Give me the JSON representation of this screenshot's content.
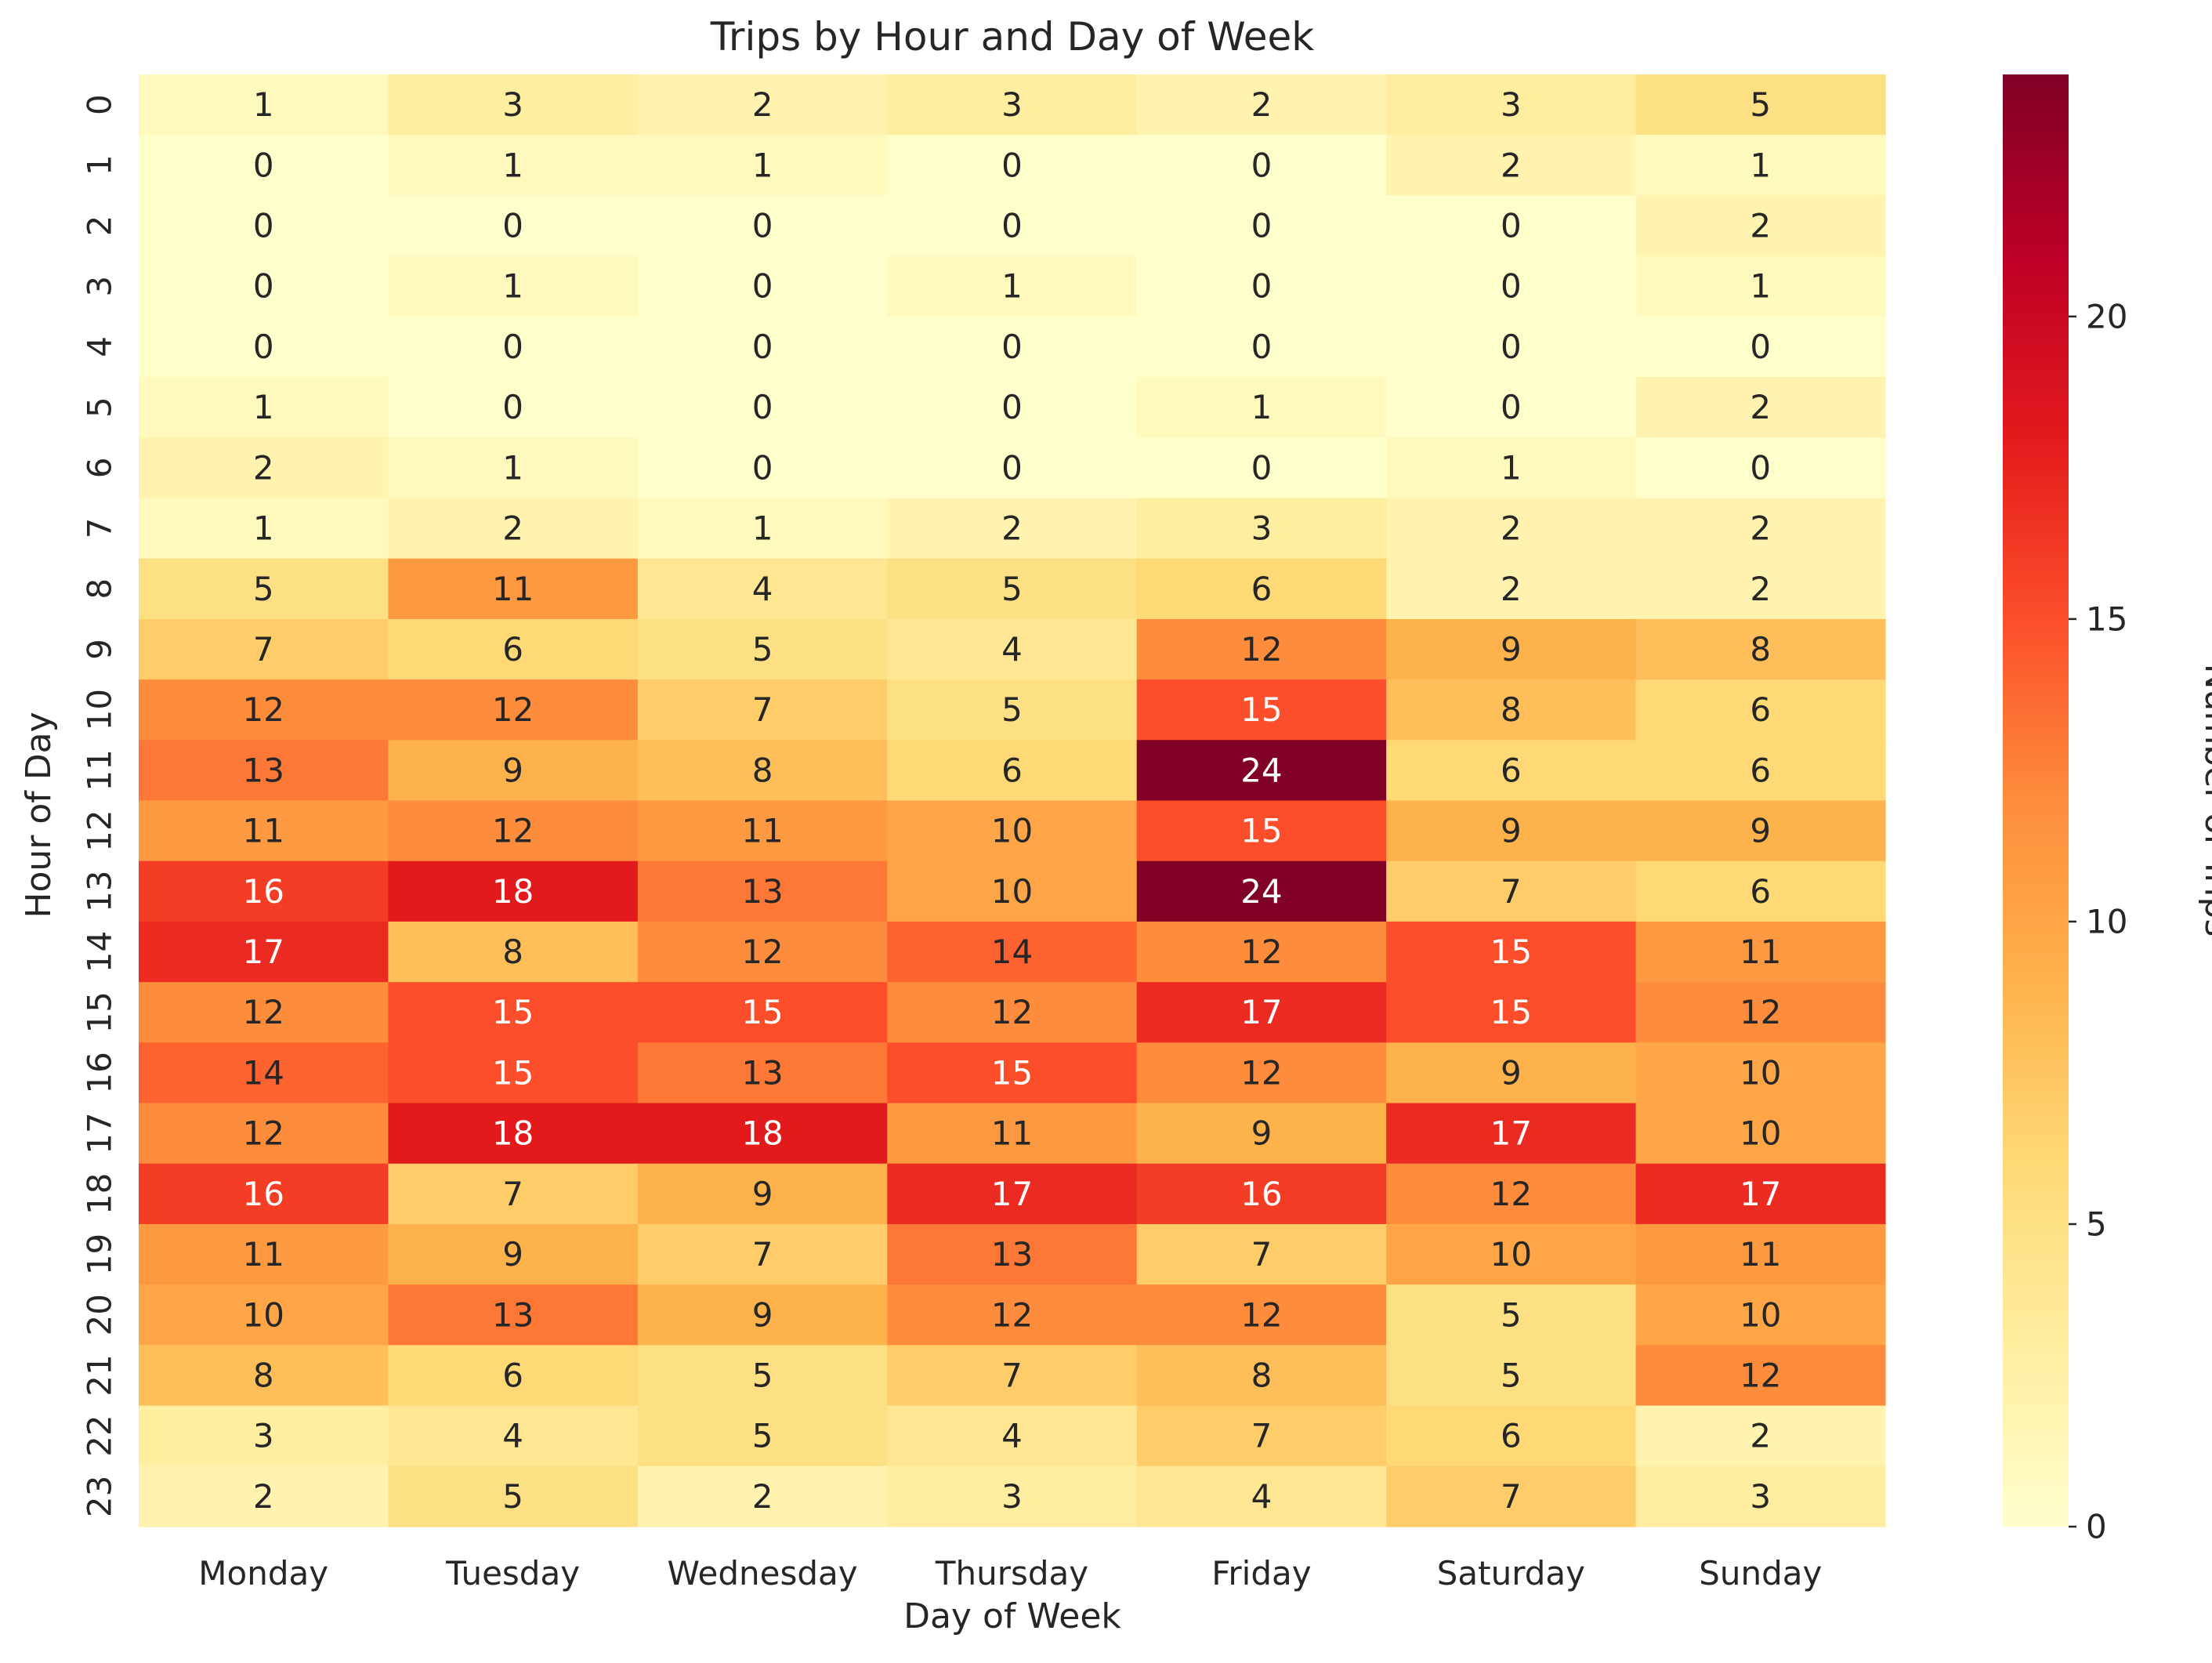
{
  "chart_data": {
    "type": "heatmap",
    "title": "Trips by Hour and Day of Week",
    "xlabel": "Day of Week",
    "ylabel": "Hour of Day",
    "x_categories": [
      "Monday",
      "Tuesday",
      "Wednesday",
      "Thursday",
      "Friday",
      "Saturday",
      "Sunday"
    ],
    "y_categories": [
      "0",
      "1",
      "2",
      "3",
      "4",
      "5",
      "6",
      "7",
      "8",
      "9",
      "10",
      "11",
      "12",
      "13",
      "14",
      "15",
      "16",
      "17",
      "18",
      "19",
      "20",
      "21",
      "22",
      "23"
    ],
    "values": [
      [
        1,
        3,
        2,
        3,
        2,
        3,
        5
      ],
      [
        0,
        1,
        1,
        0,
        0,
        2,
        1
      ],
      [
        0,
        0,
        0,
        0,
        0,
        0,
        2
      ],
      [
        0,
        1,
        0,
        1,
        0,
        0,
        1
      ],
      [
        0,
        0,
        0,
        0,
        0,
        0,
        0
      ],
      [
        1,
        0,
        0,
        0,
        1,
        0,
        2
      ],
      [
        2,
        1,
        0,
        0,
        0,
        1,
        0
      ],
      [
        1,
        2,
        1,
        2,
        3,
        2,
        2
      ],
      [
        5,
        11,
        4,
        5,
        6,
        2,
        2
      ],
      [
        7,
        6,
        5,
        4,
        12,
        9,
        8
      ],
      [
        12,
        12,
        7,
        5,
        15,
        8,
        6
      ],
      [
        13,
        9,
        8,
        6,
        24,
        6,
        6
      ],
      [
        11,
        12,
        11,
        10,
        15,
        9,
        9
      ],
      [
        16,
        18,
        13,
        10,
        24,
        7,
        6
      ],
      [
        17,
        8,
        12,
        14,
        12,
        15,
        11
      ],
      [
        12,
        15,
        15,
        12,
        17,
        15,
        12
      ],
      [
        14,
        15,
        13,
        15,
        12,
        9,
        10
      ],
      [
        12,
        18,
        18,
        11,
        9,
        17,
        10
      ],
      [
        16,
        7,
        9,
        17,
        16,
        12,
        17
      ],
      [
        11,
        9,
        7,
        13,
        7,
        10,
        11
      ],
      [
        10,
        13,
        9,
        12,
        12,
        5,
        10
      ],
      [
        8,
        6,
        5,
        7,
        8,
        5,
        12
      ],
      [
        3,
        4,
        5,
        4,
        7,
        6,
        2
      ],
      [
        2,
        5,
        2,
        3,
        4,
        7,
        3
      ]
    ],
    "colormap": "YlOrRd",
    "vmin": 0,
    "vmax": 24,
    "colorbar": {
      "label": "Number of Trips",
      "ticks": [
        0,
        5,
        10,
        15,
        20
      ]
    }
  }
}
